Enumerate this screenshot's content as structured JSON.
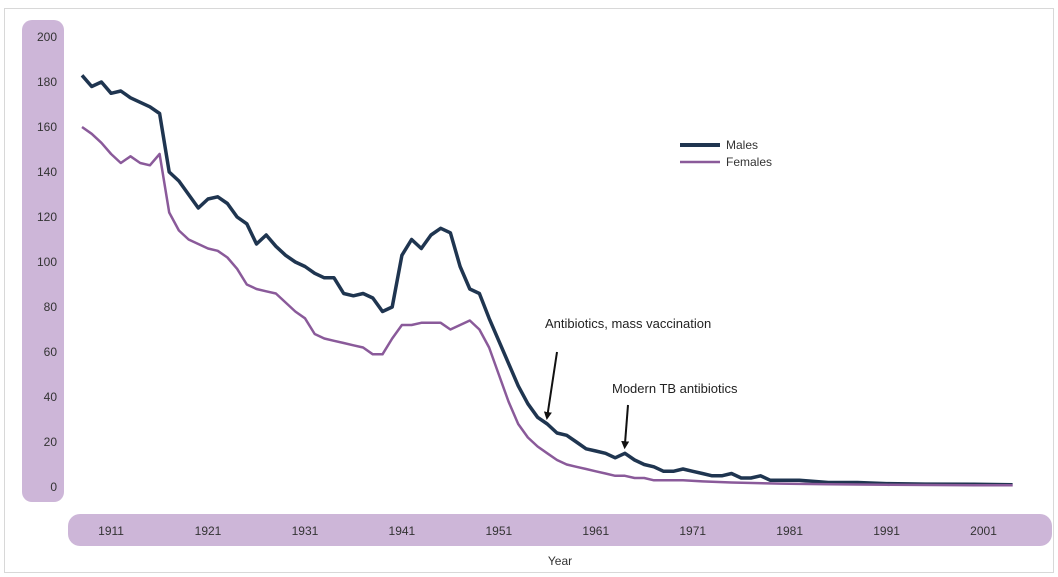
{
  "chart_data": {
    "type": "line",
    "xlabel": "Year",
    "ylabel": "",
    "ylim": [
      0,
      200
    ],
    "xlim": [
      1908,
      2006
    ],
    "y_ticks": [
      0,
      20,
      40,
      60,
      80,
      100,
      120,
      140,
      160,
      180,
      200
    ],
    "y_tick_labels": [
      "0",
      "20",
      "40",
      "60",
      "80",
      "100",
      "120",
      "140",
      "160",
      "180",
      "200"
    ],
    "x_ticks": [
      1911,
      1921,
      1931,
      1941,
      1951,
      1961,
      1971,
      1981,
      1991,
      2001
    ],
    "x_tick_labels": [
      "1911",
      "1921",
      "1931",
      "1941",
      "1951",
      "1961",
      "1971",
      "1981",
      "1991",
      "2001"
    ],
    "legend_position": "top-right",
    "grid": false,
    "series": [
      {
        "name": "Males",
        "color": "#1f3550",
        "points": [
          [
            1908,
            183
          ],
          [
            1909,
            178
          ],
          [
            1910,
            180
          ],
          [
            1911,
            175
          ],
          [
            1912,
            176
          ],
          [
            1913,
            173
          ],
          [
            1914,
            171
          ],
          [
            1915,
            169
          ],
          [
            1916,
            166
          ],
          [
            1917,
            140
          ],
          [
            1918,
            136
          ],
          [
            1919,
            130
          ],
          [
            1920,
            124
          ],
          [
            1921,
            128
          ],
          [
            1922,
            129
          ],
          [
            1923,
            126
          ],
          [
            1924,
            120
          ],
          [
            1925,
            117
          ],
          [
            1926,
            108
          ],
          [
            1927,
            112
          ],
          [
            1928,
            107
          ],
          [
            1929,
            103
          ],
          [
            1930,
            100
          ],
          [
            1931,
            98
          ],
          [
            1932,
            95
          ],
          [
            1933,
            93
          ],
          [
            1934,
            93
          ],
          [
            1935,
            86
          ],
          [
            1936,
            85
          ],
          [
            1937,
            86
          ],
          [
            1938,
            84
          ],
          [
            1939,
            78
          ],
          [
            1940,
            80
          ],
          [
            1941,
            103
          ],
          [
            1942,
            110
          ],
          [
            1943,
            106
          ],
          [
            1944,
            112
          ],
          [
            1945,
            115
          ],
          [
            1946,
            113
          ],
          [
            1947,
            98
          ],
          [
            1948,
            88
          ],
          [
            1949,
            86
          ],
          [
            1950,
            75
          ],
          [
            1951,
            65
          ],
          [
            1952,
            55
          ],
          [
            1953,
            45
          ],
          [
            1954,
            37
          ],
          [
            1955,
            31
          ],
          [
            1956,
            28
          ],
          [
            1957,
            24
          ],
          [
            1958,
            23
          ],
          [
            1959,
            20
          ],
          [
            1960,
            17
          ],
          [
            1961,
            16
          ],
          [
            1962,
            15
          ],
          [
            1963,
            13
          ],
          [
            1964,
            15
          ],
          [
            1965,
            12
          ],
          [
            1966,
            10
          ],
          [
            1967,
            9
          ],
          [
            1968,
            7
          ],
          [
            1969,
            7
          ],
          [
            1970,
            8
          ],
          [
            1971,
            7
          ],
          [
            1972,
            6
          ],
          [
            1973,
            5
          ],
          [
            1974,
            5
          ],
          [
            1975,
            6
          ],
          [
            1976,
            4
          ],
          [
            1977,
            4
          ],
          [
            1978,
            5
          ],
          [
            1979,
            3
          ],
          [
            1980,
            3
          ],
          [
            1982,
            3
          ],
          [
            1985,
            2
          ],
          [
            1988,
            2
          ],
          [
            1991,
            1.5
          ],
          [
            1995,
            1.3
          ],
          [
            2000,
            1.2
          ],
          [
            2004,
            1
          ]
        ]
      },
      {
        "name": "Females",
        "color": "#8a5a9a",
        "points": [
          [
            1908,
            160
          ],
          [
            1909,
            157
          ],
          [
            1910,
            153
          ],
          [
            1911,
            148
          ],
          [
            1912,
            144
          ],
          [
            1913,
            147
          ],
          [
            1914,
            144
          ],
          [
            1915,
            143
          ],
          [
            1916,
            148
          ],
          [
            1917,
            122
          ],
          [
            1918,
            114
          ],
          [
            1919,
            110
          ],
          [
            1920,
            108
          ],
          [
            1921,
            106
          ],
          [
            1922,
            105
          ],
          [
            1923,
            102
          ],
          [
            1924,
            97
          ],
          [
            1925,
            90
          ],
          [
            1926,
            88
          ],
          [
            1927,
            87
          ],
          [
            1928,
            86
          ],
          [
            1929,
            82
          ],
          [
            1930,
            78
          ],
          [
            1931,
            75
          ],
          [
            1932,
            68
          ],
          [
            1933,
            66
          ],
          [
            1934,
            65
          ],
          [
            1935,
            64
          ],
          [
            1936,
            63
          ],
          [
            1937,
            62
          ],
          [
            1938,
            59
          ],
          [
            1939,
            59
          ],
          [
            1940,
            66
          ],
          [
            1941,
            72
          ],
          [
            1942,
            72
          ],
          [
            1943,
            73
          ],
          [
            1944,
            73
          ],
          [
            1945,
            73
          ],
          [
            1946,
            70
          ],
          [
            1947,
            72
          ],
          [
            1948,
            74
          ],
          [
            1949,
            70
          ],
          [
            1950,
            62
          ],
          [
            1951,
            50
          ],
          [
            1952,
            38
          ],
          [
            1953,
            28
          ],
          [
            1954,
            22
          ],
          [
            1955,
            18
          ],
          [
            1956,
            15
          ],
          [
            1957,
            12
          ],
          [
            1958,
            10
          ],
          [
            1959,
            9
          ],
          [
            1960,
            8
          ],
          [
            1961,
            7
          ],
          [
            1962,
            6
          ],
          [
            1963,
            5
          ],
          [
            1964,
            5
          ],
          [
            1965,
            4
          ],
          [
            1966,
            4
          ],
          [
            1967,
            3
          ],
          [
            1968,
            3
          ],
          [
            1970,
            3
          ],
          [
            1972,
            2.5
          ],
          [
            1975,
            2
          ],
          [
            1980,
            1.5
          ],
          [
            1985,
            1.2
          ],
          [
            1991,
            1
          ],
          [
            2000,
            0.8
          ],
          [
            2004,
            0.8
          ]
        ]
      }
    ],
    "annotations": [
      {
        "text": "Antibiotics, mass vaccination",
        "arrow_to": [
          1956,
          28
        ]
      },
      {
        "text": "Modern TB antibiotics",
        "arrow_to": [
          1964,
          15
        ]
      }
    ]
  }
}
